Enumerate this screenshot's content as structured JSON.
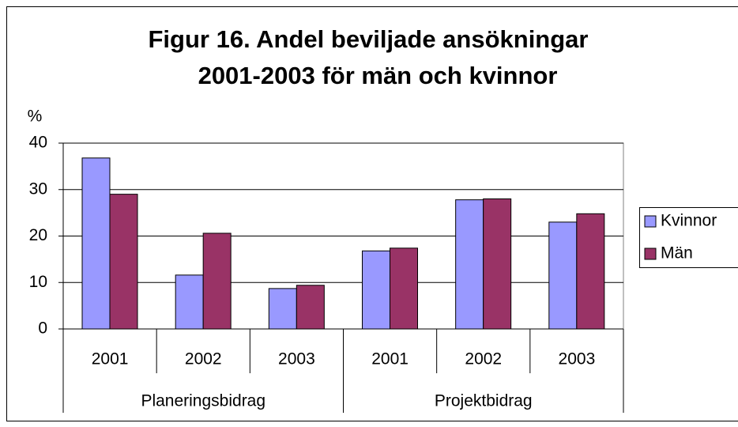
{
  "chart_data": {
    "type": "bar",
    "title": [
      "Figur 16. Andel beviljade ansökningar",
      "2001-2003 för män och kvinnor"
    ],
    "y_label": "%",
    "categories": [
      "2001",
      "2002",
      "2003",
      "2001",
      "2002",
      "2003"
    ],
    "group_labels": [
      "Planeringsbidrag",
      "Projektbidrag"
    ],
    "series": [
      {
        "name": "Kvinnor",
        "color": "#9999ff",
        "values": [
          36.8,
          11.6,
          8.7,
          16.8,
          27.8,
          23.0
        ]
      },
      {
        "name": "Män",
        "color": "#993366",
        "values": [
          29.0,
          20.6,
          9.4,
          17.4,
          28.0,
          24.8
        ]
      }
    ],
    "ylim": [
      0,
      40
    ],
    "yticks": [
      0,
      10,
      20,
      30,
      40
    ],
    "grid": true,
    "legend": "right"
  }
}
